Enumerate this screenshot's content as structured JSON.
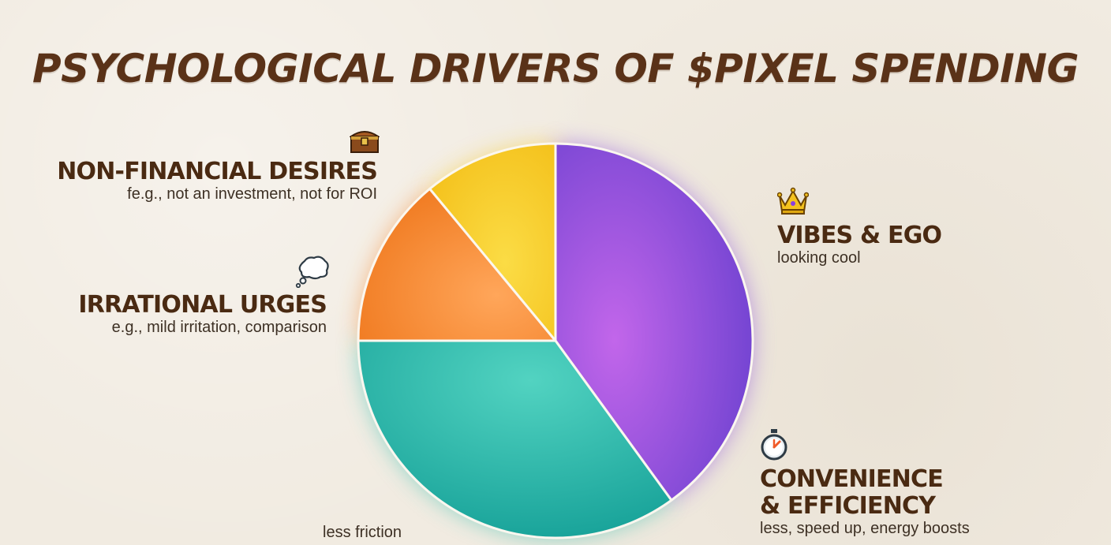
{
  "title": "PSYCHOLOGICAL DRIVERS OF $PIXEL SPENDING",
  "chart_data": {
    "type": "pie",
    "title": "PSYCHOLOGICAL DRIVERS OF $PIXEL SPENDING",
    "slices": [
      {
        "label": "VIBES & EGO",
        "sublabel": "looking cool",
        "value": 40,
        "color": "#8a4fe0"
      },
      {
        "label": "CONVENIENCE & EFFICIENCY",
        "sublabel": "less, speed up, energy boosts",
        "value": 35,
        "color": "#35c0b0"
      },
      {
        "label": "IRRATIONAL URGES",
        "sublabel": "e.g., mild irritation, comparison",
        "value": 14,
        "color": "#f58a35"
      },
      {
        "label": "NON-FINANCIAL DESIRES",
        "sublabel": "fe.g., not an investment, not for ROI",
        "value": 11,
        "color": "#f6c92a"
      }
    ]
  },
  "labels": {
    "nonfinancial": {
      "title": "NON-FINANCIAL DESIRES",
      "sub": "fe.g., not an investment, not for ROI",
      "icon": "treasure-chest-icon"
    },
    "irrational": {
      "title": "IRRATIONAL URGES",
      "sub": "e.g., mild irritation, comparison",
      "icon": "thought-bubble-icon"
    },
    "vibes": {
      "title": "VIBES & EGO",
      "sub": "looking cool",
      "icon": "crown-icon"
    },
    "convenience": {
      "title1": "CONVENIENCE",
      "title2": "& EFFICIENCY",
      "sub": "less, speed up, energy boosts",
      "icon": "stopwatch-icon"
    },
    "teal_note": "less friction"
  }
}
